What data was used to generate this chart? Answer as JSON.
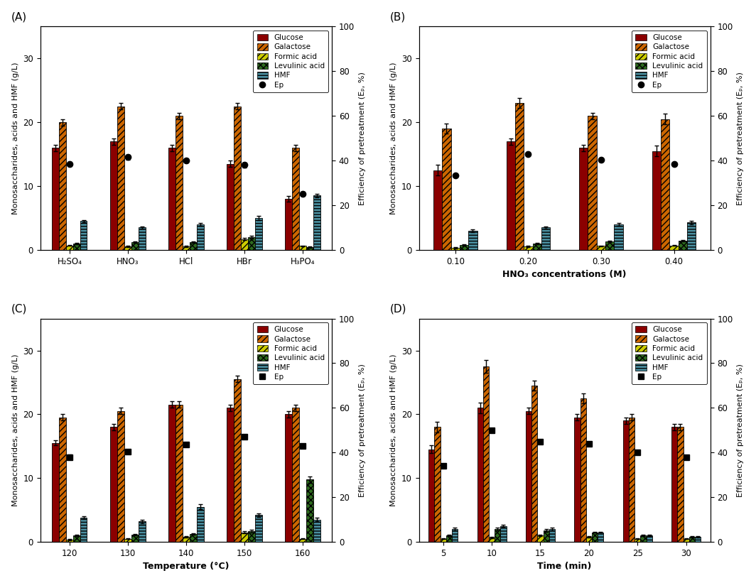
{
  "panel_A": {
    "title": "(A)",
    "xlabel": "",
    "categories": [
      "H₂SO₄",
      "HNO₃",
      "HCl",
      "HBr",
      "H₃PO₄"
    ],
    "glucose": [
      16.0,
      17.0,
      16.0,
      13.5,
      8.0
    ],
    "galactose": [
      20.0,
      22.5,
      21.0,
      22.5,
      16.0
    ],
    "formic_acid": [
      0.7,
      0.5,
      0.5,
      1.7,
      0.6
    ],
    "levulinic_acid": [
      1.0,
      1.2,
      1.2,
      2.0,
      0.4
    ],
    "hmf": [
      4.5,
      3.5,
      4.0,
      5.0,
      8.5
    ],
    "ep": [
      38.5,
      41.5,
      40.0,
      38.0,
      25.0
    ],
    "glucose_err": [
      0.5,
      0.5,
      0.5,
      0.5,
      0.4
    ],
    "galactose_err": [
      0.5,
      0.5,
      0.5,
      0.5,
      0.5
    ],
    "formic_err": [
      0.1,
      0.1,
      0.1,
      0.2,
      0.1
    ],
    "levulinic_err": [
      0.1,
      0.1,
      0.1,
      0.2,
      0.1
    ],
    "hmf_err": [
      0.2,
      0.2,
      0.2,
      0.3,
      0.3
    ],
    "ep_err": [
      1.0,
      1.0,
      1.0,
      1.0,
      1.0
    ],
    "ep_marker": "o"
  },
  "panel_B": {
    "title": "(B)",
    "xlabel": "HNO₃ concentrations (M)",
    "categories": [
      "0.10",
      "0.20",
      "0.30",
      "0.40"
    ],
    "glucose": [
      12.5,
      17.0,
      16.0,
      15.5
    ],
    "galactose": [
      19.0,
      23.0,
      21.0,
      20.5
    ],
    "formic_acid": [
      0.3,
      0.5,
      0.6,
      0.7
    ],
    "levulinic_acid": [
      0.8,
      1.0,
      1.3,
      1.4
    ],
    "hmf": [
      3.0,
      3.5,
      4.0,
      4.3
    ],
    "ep": [
      33.5,
      43.0,
      40.5,
      38.5
    ],
    "glucose_err": [
      0.8,
      0.5,
      0.5,
      0.8
    ],
    "galactose_err": [
      0.8,
      0.8,
      0.5,
      0.8
    ],
    "formic_err": [
      0.1,
      0.1,
      0.1,
      0.1
    ],
    "levulinic_err": [
      0.1,
      0.1,
      0.1,
      0.1
    ],
    "hmf_err": [
      0.2,
      0.2,
      0.2,
      0.3
    ],
    "ep_err": [
      0.5,
      0.5,
      0.5,
      0.5
    ],
    "ep_marker": "o"
  },
  "panel_C": {
    "title": "(C)",
    "xlabel": "Temperature (°C)",
    "categories": [
      "120",
      "130",
      "140",
      "150",
      "160"
    ],
    "glucose": [
      15.5,
      18.0,
      21.5,
      21.0,
      20.0
    ],
    "galactose": [
      19.5,
      20.5,
      21.5,
      25.5,
      21.0
    ],
    "formic_acid": [
      0.3,
      0.5,
      0.8,
      1.5,
      0.5
    ],
    "levulinic_acid": [
      1.0,
      1.1,
      1.2,
      1.7,
      9.8
    ],
    "hmf": [
      3.8,
      3.2,
      5.5,
      4.2,
      3.5
    ],
    "ep": [
      38.0,
      40.5,
      43.5,
      47.0,
      43.0
    ],
    "glucose_err": [
      0.4,
      0.5,
      0.5,
      0.5,
      0.5
    ],
    "galactose_err": [
      0.5,
      0.5,
      0.5,
      0.5,
      0.5
    ],
    "formic_err": [
      0.1,
      0.1,
      0.1,
      0.2,
      0.1
    ],
    "levulinic_err": [
      0.1,
      0.1,
      0.1,
      0.2,
      0.5
    ],
    "hmf_err": [
      0.2,
      0.3,
      0.4,
      0.3,
      0.3
    ],
    "ep_err": [
      1.0,
      0.5,
      1.0,
      0.5,
      0.5
    ],
    "ep_marker": "s"
  },
  "panel_D": {
    "title": "(D)",
    "xlabel": "Time (min)",
    "categories": [
      "5",
      "10",
      "15",
      "20",
      "25",
      "30"
    ],
    "glucose": [
      14.5,
      21.0,
      20.5,
      19.5,
      19.0,
      18.0
    ],
    "galactose": [
      18.0,
      27.5,
      24.5,
      22.5,
      19.5,
      18.0
    ],
    "formic_acid": [
      0.5,
      0.7,
      1.0,
      0.8,
      0.5,
      0.5
    ],
    "levulinic_acid": [
      1.0,
      2.0,
      1.8,
      1.5,
      1.0,
      0.8
    ],
    "hmf": [
      2.0,
      2.5,
      2.0,
      1.5,
      1.0,
      0.8
    ],
    "ep": [
      34.0,
      50.0,
      45.0,
      44.0,
      40.0,
      38.0
    ],
    "glucose_err": [
      0.6,
      0.8,
      0.5,
      0.5,
      0.5,
      0.5
    ],
    "galactose_err": [
      0.8,
      1.0,
      0.8,
      0.8,
      0.5,
      0.5
    ],
    "formic_err": [
      0.1,
      0.1,
      0.1,
      0.1,
      0.1,
      0.1
    ],
    "levulinic_err": [
      0.1,
      0.2,
      0.2,
      0.1,
      0.1,
      0.1
    ],
    "hmf_err": [
      0.2,
      0.2,
      0.2,
      0.1,
      0.1,
      0.1
    ],
    "ep_err": [
      0.5,
      1.0,
      0.5,
      0.8,
      0.5,
      0.5
    ],
    "ep_marker": "s"
  },
  "colors": {
    "glucose_face": "#8B0000",
    "glucose_edge": "#000000",
    "galactose_face": "#CC6600",
    "galactose_hatch": "////",
    "formic_face": "#CCCC00",
    "formic_hatch": "////",
    "levulinic_face": "#2E6B1E",
    "levulinic_hatch": "xxxx",
    "hmf_face": "#4A8FA0",
    "hmf_hatch": "----"
  },
  "bar_width": 0.12,
  "ylim_left": [
    0,
    35
  ],
  "ylim_right": [
    0,
    100
  ],
  "yticks_left": [
    0,
    10,
    20,
    30
  ],
  "yticks_right": [
    0,
    20,
    40,
    60,
    80,
    100
  ]
}
